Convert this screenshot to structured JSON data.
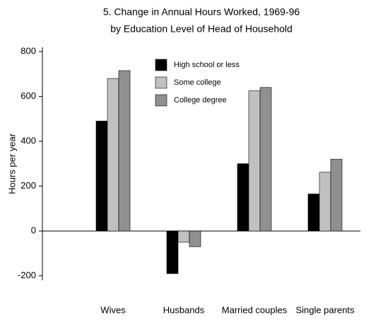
{
  "chart_data": {
    "type": "bar",
    "title": "5. Change in Annual Hours Worked, 1969-96",
    "subtitle": "by Education Level of Head of Household",
    "y_label": "Hours per year",
    "categories": [
      "Wives",
      "Husbands",
      "Married couples",
      "Single parents"
    ],
    "series": [
      {
        "name": "High school or less",
        "color": "#000000",
        "values": [
          490,
          -190,
          300,
          165
        ]
      },
      {
        "name": "Some college",
        "color": "#c0c0c0",
        "values": [
          680,
          -50,
          625,
          262
        ]
      },
      {
        "name": "College degree",
        "color": "#909090",
        "values": [
          715,
          -70,
          640,
          320
        ]
      }
    ],
    "ylim": [
      -220,
      800
    ],
    "yticks": [
      -200,
      0,
      200,
      400,
      600,
      800
    ],
    "legend": "top"
  }
}
